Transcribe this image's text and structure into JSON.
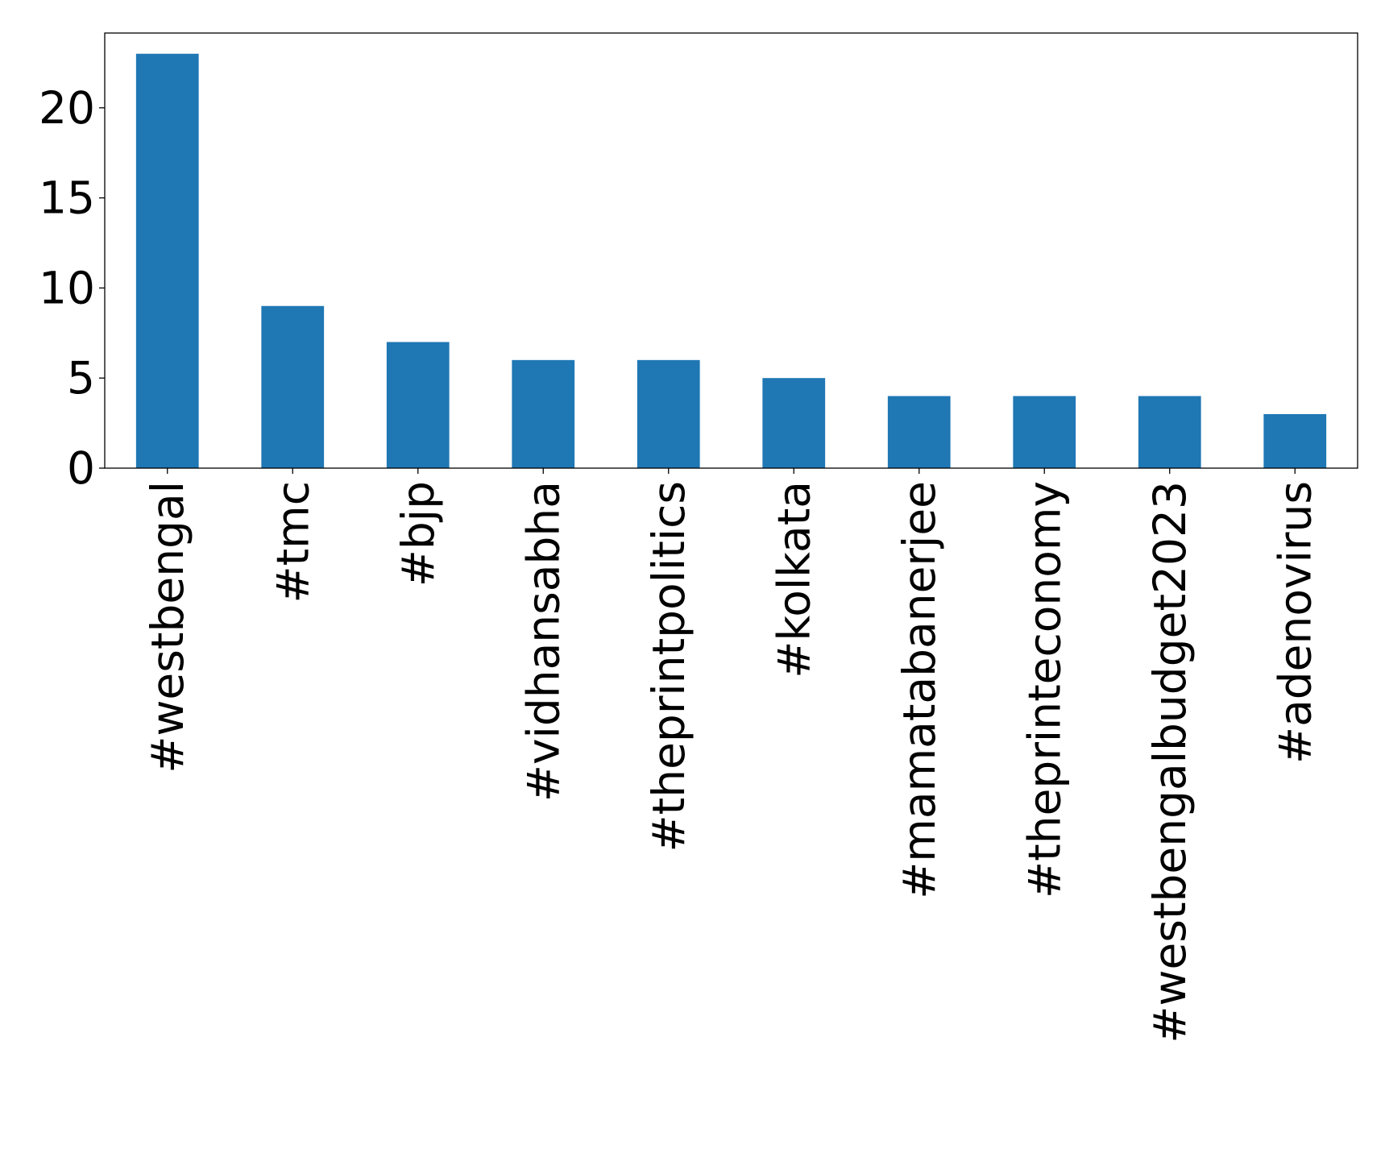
{
  "chart_data": {
    "type": "bar",
    "title": "",
    "xlabel": "",
    "ylabel": "",
    "categories": [
      "#westbengal",
      "#tmc",
      "#bjp",
      "#vidhansabha",
      "#theprintpolitics",
      "#kolkata",
      "#mamatabanerjee",
      "#theprinteconomy",
      "#westbengalbudget2023",
      "#adenovirus"
    ],
    "series": [
      {
        "values": [
          23,
          9,
          7,
          6,
          6,
          5,
          4,
          4,
          4,
          3
        ],
        "color": "#1f77b4"
      }
    ],
    "ylim": [
      0,
      24.15
    ],
    "yticks": [
      0,
      5,
      10,
      15,
      20
    ],
    "grid": false,
    "legend": "none"
  }
}
